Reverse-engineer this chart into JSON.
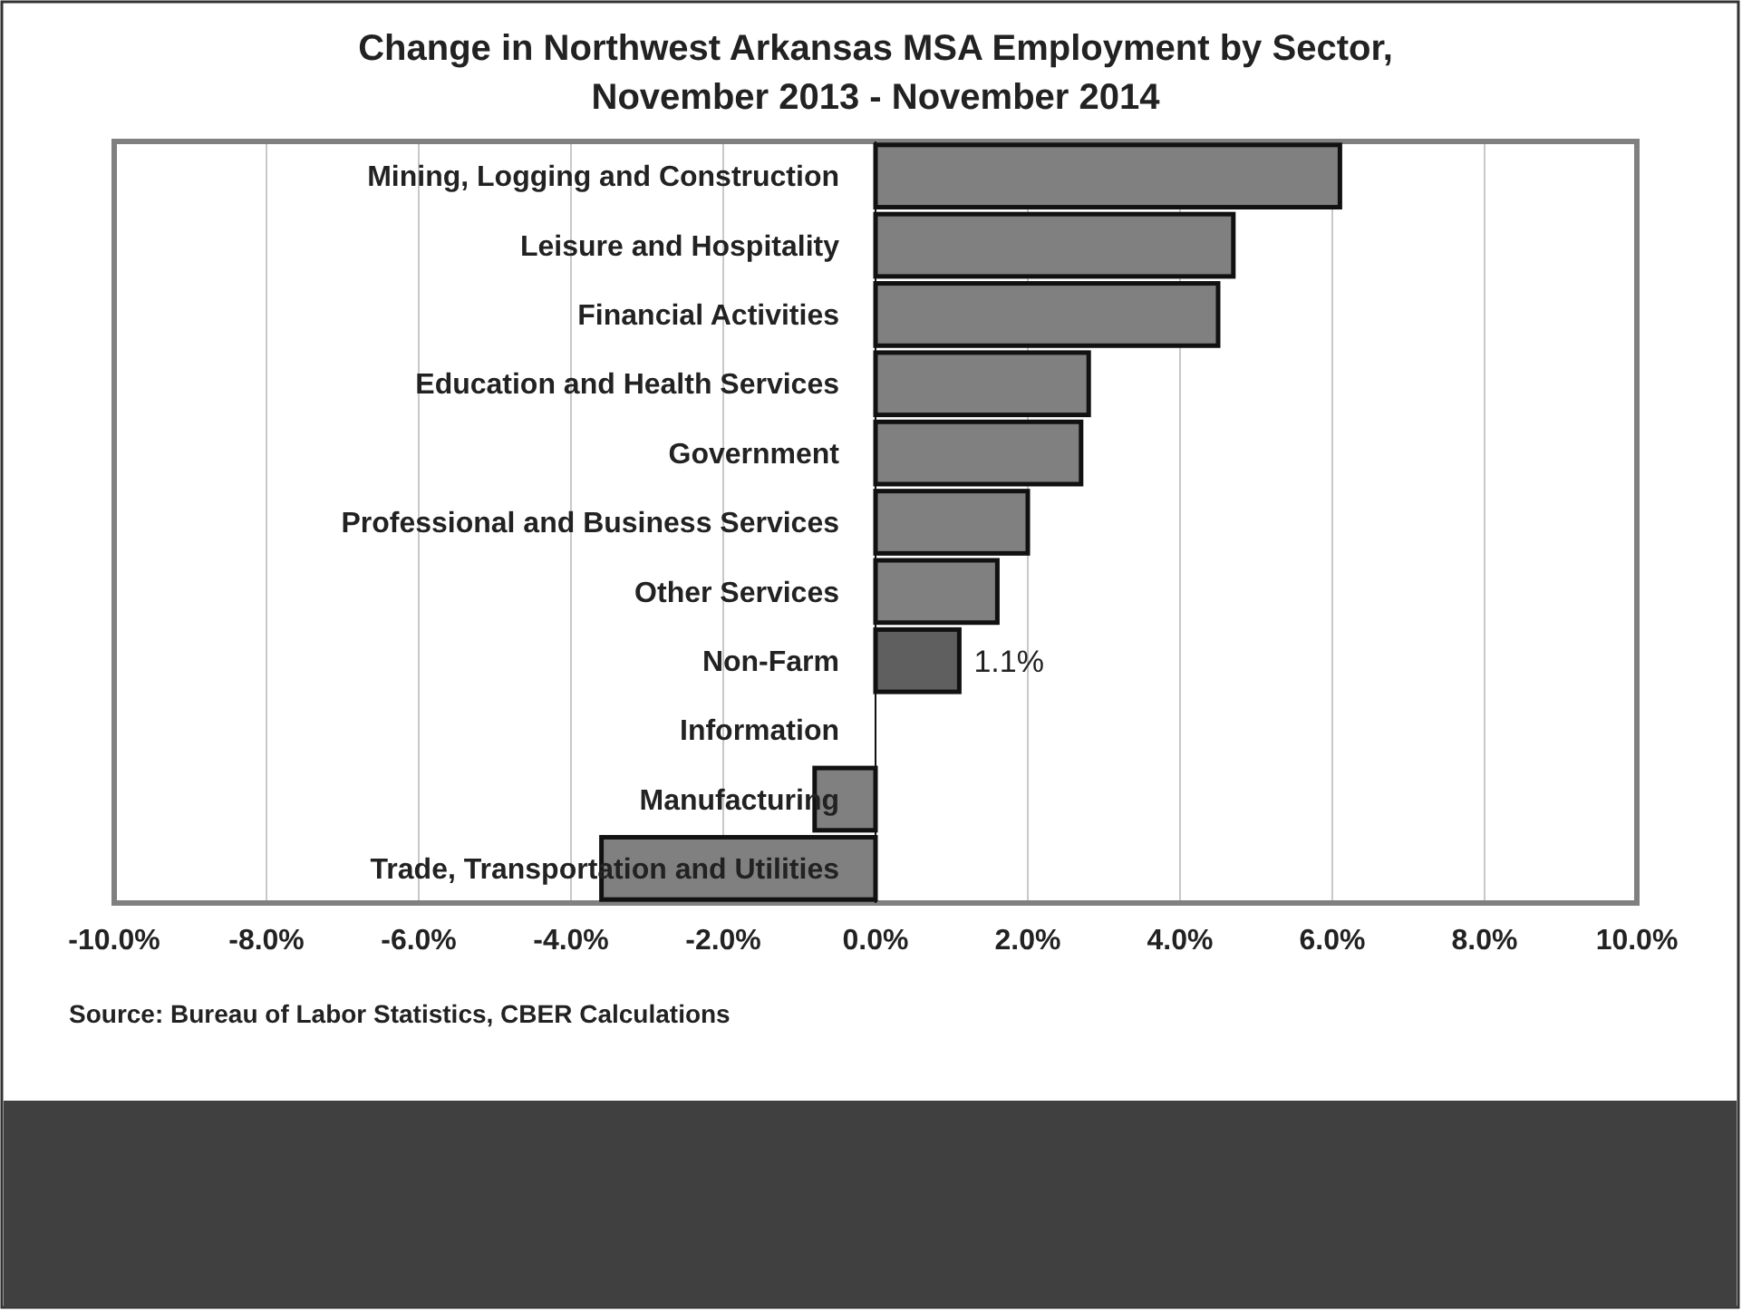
{
  "chart_data": {
    "type": "bar",
    "orientation": "horizontal",
    "title": "Change in Northwest Arkansas MSA Employment by Sector,\nNovember 2013 - November 2014",
    "categories": [
      "Mining, Logging and Construction",
      "Leisure and Hospitality",
      "Financial Activities",
      "Education and Health Services",
      "Government",
      "Professional and Business Services",
      "Other Services",
      "Non-Farm",
      "Information",
      "Manufacturing",
      "Trade, Transportation and Utilities"
    ],
    "values": [
      6.1,
      4.7,
      4.5,
      2.8,
      2.7,
      2.0,
      1.6,
      1.1,
      0,
      -0.8,
      -3.6
    ],
    "colors": [
      "#808080",
      "#808080",
      "#808080",
      "#808080",
      "#808080",
      "#808080",
      "#808080",
      "#5f5f5f",
      "#808080",
      "#808080",
      "#808080"
    ],
    "value_labels": [
      null,
      null,
      null,
      null,
      null,
      null,
      null,
      "1.1%",
      null,
      null,
      null
    ],
    "xlim": [
      -10,
      10
    ],
    "xticks": [
      {
        "value": -10,
        "label": "-10.0%"
      },
      {
        "value": -8,
        "label": "-8.0%"
      },
      {
        "value": -6,
        "label": "-6.0%"
      },
      {
        "value": -4,
        "label": "-4.0%"
      },
      {
        "value": -2,
        "label": "-2.0%"
      },
      {
        "value": 0,
        "label": "0.0%"
      },
      {
        "value": 2,
        "label": "2.0%"
      },
      {
        "value": 4,
        "label": "4.0%"
      },
      {
        "value": 6,
        "label": "6.0%"
      },
      {
        "value": 8,
        "label": "8.0%"
      },
      {
        "value": 10,
        "label": "10.0%"
      }
    ],
    "grid": "x",
    "annotations": [
      "Source: Bureau of Labor Statistics, CBER Calculations"
    ]
  }
}
